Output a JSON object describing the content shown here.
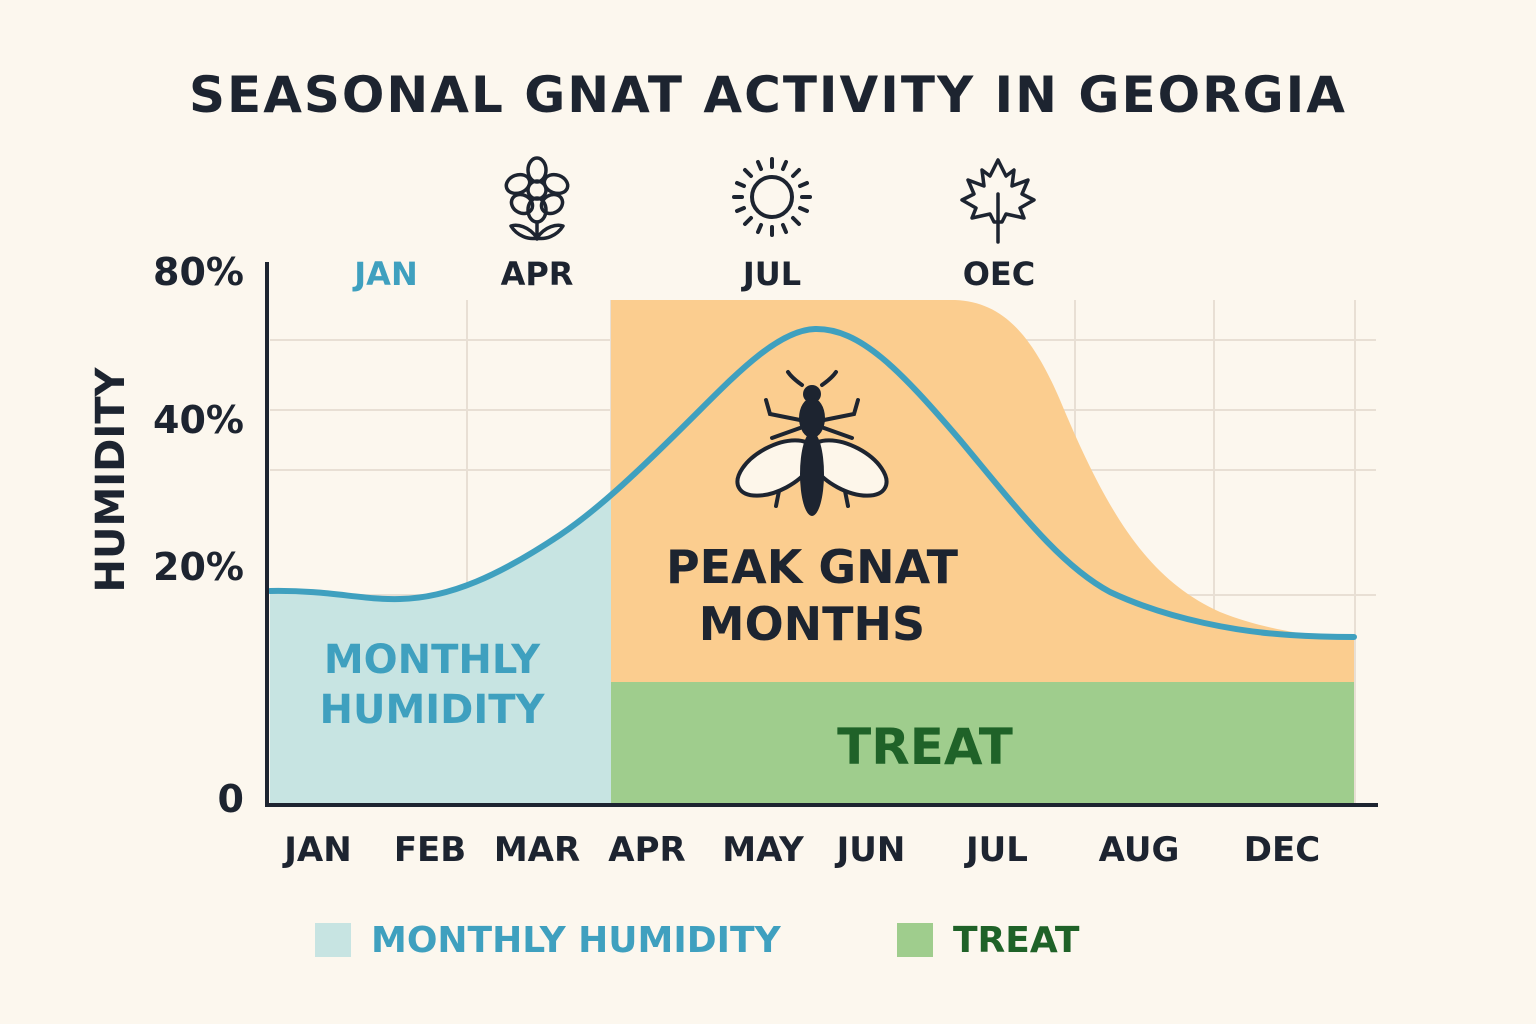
{
  "title": "SEASONAL GNAT ACTIVITY IN GEORGIA",
  "colors": {
    "humidity_line": "#3fa0bf",
    "humidity_fill": "#c7e4e2",
    "peak_fill": "#fbcd8f",
    "treat_fill": "#9fcd8d",
    "humidity_text": "#3fa0bf",
    "treat_text": "#1f6228",
    "dark": "#1d2430",
    "grid": "#e8dfd4"
  },
  "icons": [
    "flower-icon",
    "sun-icon",
    "leaf-icon",
    "gnat-icon"
  ],
  "chart_data": {
    "type": "area",
    "ylabel": "HUMIDITY",
    "y_tick_labels": [
      "80%",
      "40%",
      "20%",
      "0"
    ],
    "x_tick_labels": [
      "JAN",
      "FEB",
      "MAR",
      "APR",
      "MAY",
      "JUN",
      "JUL",
      "AUG",
      "DEC"
    ],
    "season_labels": [
      {
        "label": "JAN",
        "icon": ""
      },
      {
        "label": "APR",
        "icon": "flower-icon"
      },
      {
        "label": "JUL",
        "icon": "sun-icon"
      },
      {
        "label": "OEC",
        "icon": "leaf-icon"
      }
    ],
    "series": [
      {
        "name": "MONTHLY HUMIDITY",
        "type": "line",
        "x": [
          "JAN",
          "FEB",
          "MAR",
          "APR",
          "MAY",
          "JUN",
          "JUL",
          "AUG",
          "DEC"
        ],
        "values": [
          16,
          16,
          18,
          30,
          50,
          55,
          38,
          22,
          13
        ]
      }
    ],
    "regions": [
      {
        "label": "MONTHLY HUMIDITY",
        "from": "JAN",
        "to": "APR"
      },
      {
        "label": "PEAK GNAT MONTHS",
        "from": "APR",
        "to": "DEC"
      },
      {
        "label": "TREAT",
        "from": "APR",
        "to": "DEC"
      }
    ],
    "legend": [
      {
        "label": "MONTHLY HUMIDITY"
      },
      {
        "label": "TREAT"
      }
    ],
    "legend_position": "bottom",
    "grid": true
  }
}
